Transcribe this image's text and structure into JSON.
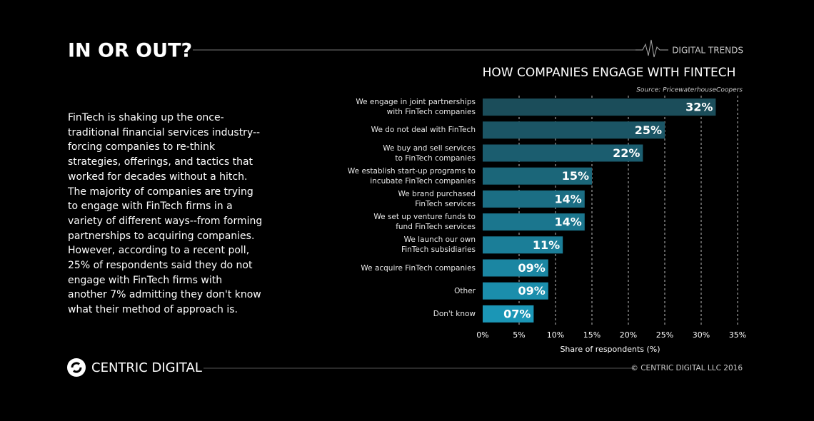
{
  "header": {
    "title": "IN OR OUT?",
    "section": "DIGITAL TRENDS"
  },
  "body": {
    "text": "FinTech is shaking up the once-traditional financial services industry--forcing companies to re-think strategies, offerings, and tactics that worked for decades without a hitch. The majority of companies are trying to engage with FinTech firms in a variety of different ways--from forming partnerships to acquiring companies. However, according to a recent poll, 25% of respondents said they do not engage with FinTech firms with another 7% admitting they don't know what their method of approach is."
  },
  "chart_data": {
    "type": "hbar",
    "title": "HOW COMPANIES ENGAGE WITH FINTECH",
    "source": "Source: PricewaterhouseCoopers",
    "categories": [
      "We engage in joint partnerships\nwith FinTech companies",
      "We do not deal with FinTech",
      "We buy and sell services\nto FinTech companies",
      "We establish start-up programs to\nincubate FinTech companies",
      "We brand purchased\nFinTech services",
      "We set up venture funds to\nfund FinTech services",
      "We launch our own\nFinTech subsidiaries",
      "We acquire FinTech companies",
      "Other",
      "Don't know"
    ],
    "values": [
      32,
      25,
      22,
      15,
      14,
      14,
      11,
      9,
      9,
      7
    ],
    "value_labels": [
      "32%",
      "25%",
      "22%",
      "15%",
      "14%",
      "14%",
      "11%",
      "09%",
      "09%",
      "07%"
    ],
    "colors": [
      "#1b4d5a",
      "#1b5565",
      "#1b5d6f",
      "#1b6679",
      "#1b6e84",
      "#1b768e",
      "#1b7e98",
      "#1b86a2",
      "#1b8eac",
      "#1b96b6"
    ],
    "xlabel": "Share of respondents (%)",
    "xlim": [
      0,
      35
    ],
    "xticks": [
      {
        "value": 0,
        "label": "0%"
      },
      {
        "value": 5,
        "label": "5%"
      },
      {
        "value": 10,
        "label": "10%"
      },
      {
        "value": 15,
        "label": "15%"
      },
      {
        "value": 20,
        "label": "20%"
      },
      {
        "value": 25,
        "label": "25%"
      },
      {
        "value": 30,
        "label": "30%"
      },
      {
        "value": 35,
        "label": "35%"
      }
    ],
    "grid": true
  },
  "footer": {
    "brand": "CENTRIC DIGITAL",
    "copyright": "© CENTRIC DIGITAL LLC 2016"
  }
}
